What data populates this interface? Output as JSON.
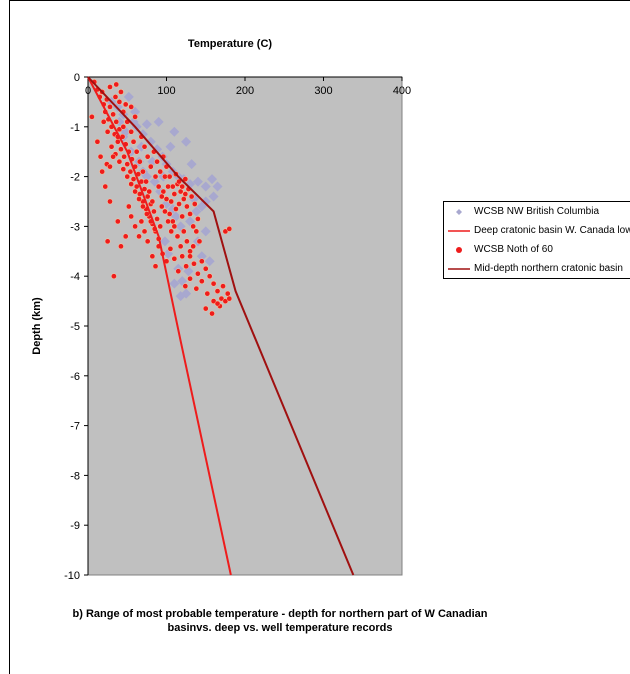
{
  "chart_data": {
    "type": "scatter",
    "title": "Temperature (C)",
    "xlabel": "Temperature (C)",
    "ylabel": "Depth (km)",
    "xlim": [
      0,
      400
    ],
    "ylim": [
      -10,
      0
    ],
    "xticks": [
      "0",
      "100",
      "200",
      "300",
      "400"
    ],
    "yticks": [
      "0",
      "-1",
      "-2",
      "-3",
      "-4",
      "-5",
      "-6",
      "-7",
      "-8",
      "-9",
      "-10"
    ],
    "x_axis_position": "top",
    "grid": false,
    "legend_position": "right",
    "plot_background": "#c0c0c0",
    "series": [
      {
        "name": "WCSB NW British Columbia",
        "kind": "scatter",
        "marker": "diamond",
        "color": "#a8a8cf",
        "points": [
          [
            30,
            -0.5
          ],
          [
            38,
            -0.6
          ],
          [
            45,
            -0.75
          ],
          [
            52,
            -0.4
          ],
          [
            58,
            -0.9
          ],
          [
            62,
            -1.0
          ],
          [
            70,
            -1.15
          ],
          [
            75,
            -0.95
          ],
          [
            80,
            -1.3
          ],
          [
            88,
            -1.45
          ],
          [
            95,
            -1.6
          ],
          [
            100,
            -1.75
          ],
          [
            108,
            -1.9
          ],
          [
            115,
            -2.0
          ],
          [
            122,
            -2.05
          ],
          [
            130,
            -2.15
          ],
          [
            140,
            -2.1
          ],
          [
            150,
            -2.2
          ],
          [
            158,
            -2.05
          ],
          [
            165,
            -2.2
          ],
          [
            135,
            -2.45
          ],
          [
            145,
            -2.6
          ],
          [
            130,
            -2.9
          ],
          [
            150,
            -3.1
          ],
          [
            140,
            -3.3
          ],
          [
            145,
            -3.6
          ],
          [
            155,
            -3.7
          ],
          [
            120,
            -4.1
          ],
          [
            125,
            -4.35
          ],
          [
            110,
            -4.15
          ],
          [
            118,
            -4.4
          ],
          [
            70,
            -1.9
          ],
          [
            85,
            -2.1
          ],
          [
            92,
            -2.3
          ],
          [
            100,
            -2.55
          ],
          [
            112,
            -2.8
          ],
          [
            118,
            -3.0
          ],
          [
            98,
            -3.3
          ],
          [
            102,
            -3.55
          ],
          [
            115,
            -3.85
          ],
          [
            45,
            -1.2
          ],
          [
            55,
            -1.5
          ],
          [
            65,
            -1.7
          ],
          [
            75,
            -2.0
          ],
          [
            60,
            -0.7
          ],
          [
            40,
            -0.9
          ],
          [
            48,
            -1.1
          ],
          [
            125,
            -1.3
          ],
          [
            110,
            -1.1
          ],
          [
            90,
            -0.9
          ],
          [
            105,
            -1.4
          ],
          [
            132,
            -1.75
          ],
          [
            138,
            -2.7
          ],
          [
            128,
            -3.9
          ],
          [
            108,
            -2.65
          ],
          [
            96,
            -2.0
          ],
          [
            82,
            -1.7
          ],
          [
            68,
            -1.4
          ],
          [
            150,
            -2.5
          ],
          [
            160,
            -2.4
          ]
        ]
      },
      {
        "name": "Deep cratonic basin W. Canada low",
        "kind": "line",
        "color": "#ee1c1c",
        "points": [
          [
            0,
            0
          ],
          [
            50,
            -1.5
          ],
          [
            90,
            -3.2
          ],
          [
            118,
            -5.3
          ],
          [
            182,
            -10
          ]
        ]
      },
      {
        "name": "WCSB Noth of 60",
        "kind": "scatter",
        "marker": "circle",
        "color": "#ee1c1c",
        "points": [
          [
            8,
            -0.1
          ],
          [
            12,
            -0.25
          ],
          [
            15,
            -0.4
          ],
          [
            18,
            -0.3
          ],
          [
            20,
            -0.55
          ],
          [
            22,
            -0.7
          ],
          [
            24,
            -0.45
          ],
          [
            26,
            -0.85
          ],
          [
            28,
            -0.6
          ],
          [
            30,
            -1.0
          ],
          [
            32,
            -0.75
          ],
          [
            34,
            -1.15
          ],
          [
            36,
            -0.9
          ],
          [
            38,
            -1.3
          ],
          [
            40,
            -1.05
          ],
          [
            42,
            -1.45
          ],
          [
            44,
            -1.2
          ],
          [
            46,
            -1.6
          ],
          [
            48,
            -1.35
          ],
          [
            50,
            -1.75
          ],
          [
            52,
            -1.5
          ],
          [
            54,
            -1.9
          ],
          [
            56,
            -1.65
          ],
          [
            58,
            -2.05
          ],
          [
            60,
            -1.8
          ],
          [
            62,
            -2.2
          ],
          [
            64,
            -1.95
          ],
          [
            66,
            -2.35
          ],
          [
            68,
            -2.1
          ],
          [
            70,
            -2.5
          ],
          [
            72,
            -2.25
          ],
          [
            74,
            -2.65
          ],
          [
            76,
            -2.4
          ],
          [
            78,
            -2.8
          ],
          [
            80,
            -2.55
          ],
          [
            82,
            -2.95
          ],
          [
            84,
            -2.7
          ],
          [
            86,
            -3.1
          ],
          [
            88,
            -2.85
          ],
          [
            90,
            -3.25
          ],
          [
            92,
            -3.0
          ],
          [
            94,
            -2.6
          ],
          [
            96,
            -2.3
          ],
          [
            98,
            -2.0
          ],
          [
            100,
            -2.45
          ],
          [
            102,
            -2.2
          ],
          [
            104,
            -2.75
          ],
          [
            106,
            -2.5
          ],
          [
            108,
            -2.9
          ],
          [
            110,
            -2.35
          ],
          [
            112,
            -2.65
          ],
          [
            114,
            -2.15
          ],
          [
            116,
            -2.55
          ],
          [
            118,
            -2.3
          ],
          [
            120,
            -2.8
          ],
          [
            122,
            -2.45
          ],
          [
            124,
            -2.05
          ],
          [
            126,
            -2.6
          ],
          [
            128,
            -2.25
          ],
          [
            130,
            -2.75
          ],
          [
            132,
            -2.4
          ],
          [
            134,
            -3.0
          ],
          [
            136,
            -2.55
          ],
          [
            138,
            -3.1
          ],
          [
            140,
            -2.85
          ],
          [
            142,
            -3.3
          ],
          [
            20,
            -0.9
          ],
          [
            25,
            -1.1
          ],
          [
            30,
            -1.4
          ],
          [
            35,
            -1.55
          ],
          [
            40,
            -1.7
          ],
          [
            45,
            -1.85
          ],
          [
            50,
            -2.0
          ],
          [
            55,
            -2.15
          ],
          [
            60,
            -2.3
          ],
          [
            65,
            -2.45
          ],
          [
            70,
            -2.6
          ],
          [
            75,
            -2.75
          ],
          [
            80,
            -2.9
          ],
          [
            85,
            -3.05
          ],
          [
            90,
            -3.4
          ],
          [
            95,
            -3.55
          ],
          [
            100,
            -3.7
          ],
          [
            105,
            -3.45
          ],
          [
            110,
            -3.65
          ],
          [
            115,
            -3.9
          ],
          [
            120,
            -3.6
          ],
          [
            125,
            -3.8
          ],
          [
            130,
            -3.5
          ],
          [
            135,
            -3.75
          ],
          [
            140,
            -3.95
          ],
          [
            145,
            -3.7
          ],
          [
            150,
            -3.85
          ],
          [
            155,
            -4.0
          ],
          [
            160,
            -4.15
          ],
          [
            165,
            -4.3
          ],
          [
            170,
            -4.45
          ],
          [
            175,
            -4.5
          ],
          [
            178,
            -4.35
          ],
          [
            180,
            -4.45
          ],
          [
            172,
            -4.2
          ],
          [
            168,
            -4.6
          ],
          [
            160,
            -4.5
          ],
          [
            152,
            -4.35
          ],
          [
            145,
            -4.1
          ],
          [
            138,
            -4.25
          ],
          [
            130,
            -4.05
          ],
          [
            124,
            -4.2
          ],
          [
            150,
            -4.65
          ],
          [
            158,
            -4.75
          ],
          [
            165,
            -4.55
          ],
          [
            175,
            -3.1
          ],
          [
            180,
            -3.05
          ],
          [
            33,
            -4.0
          ],
          [
            25,
            -3.3
          ],
          [
            28,
            -2.5
          ],
          [
            18,
            -1.9
          ],
          [
            22,
            -2.2
          ],
          [
            38,
            -2.9
          ],
          [
            42,
            -3.4
          ],
          [
            48,
            -3.2
          ],
          [
            55,
            -2.8
          ],
          [
            60,
            -3.0
          ],
          [
            65,
            -3.2
          ],
          [
            52,
            -2.6
          ],
          [
            12,
            -1.3
          ],
          [
            16,
            -1.6
          ],
          [
            24,
            -1.75
          ],
          [
            5,
            -0.8
          ],
          [
            40,
            -0.5
          ],
          [
            45,
            -0.7
          ],
          [
            50,
            -0.9
          ],
          [
            55,
            -1.1
          ],
          [
            58,
            -1.3
          ],
          [
            62,
            -1.5
          ],
          [
            66,
            -1.7
          ],
          [
            70,
            -1.9
          ],
          [
            74,
            -2.1
          ],
          [
            78,
            -2.3
          ],
          [
            82,
            -2.5
          ],
          [
            86,
            -2.0
          ],
          [
            90,
            -2.2
          ],
          [
            94,
            -2.4
          ],
          [
            98,
            -2.7
          ],
          [
            102,
            -2.9
          ],
          [
            106,
            -3.1
          ],
          [
            110,
            -3.0
          ],
          [
            114,
            -3.2
          ],
          [
            118,
            -3.4
          ],
          [
            122,
            -3.1
          ],
          [
            126,
            -3.3
          ],
          [
            130,
            -3.6
          ],
          [
            134,
            -3.4
          ],
          [
            35,
            -0.4
          ],
          [
            42,
            -0.3
          ],
          [
            48,
            -0.55
          ],
          [
            28,
            -0.2
          ],
          [
            36,
            -0.15
          ],
          [
            55,
            -0.6
          ],
          [
            60,
            -0.8
          ],
          [
            45,
            -1.0
          ],
          [
            38,
            -1.2
          ],
          [
            32,
            -1.6
          ],
          [
            28,
            -1.8
          ],
          [
            68,
            -1.2
          ],
          [
            72,
            -1.4
          ],
          [
            76,
            -1.6
          ],
          [
            80,
            -1.8
          ],
          [
            84,
            -1.5
          ],
          [
            88,
            -1.7
          ],
          [
            92,
            -1.9
          ],
          [
            96,
            -1.6
          ],
          [
            100,
            -1.8
          ],
          [
            104,
            -2.0
          ],
          [
            108,
            -2.2
          ],
          [
            112,
            -1.95
          ],
          [
            116,
            -2.1
          ],
          [
            120,
            -2.2
          ],
          [
            124,
            -2.35
          ],
          [
            68,
            -2.9
          ],
          [
            72,
            -3.1
          ],
          [
            76,
            -3.3
          ],
          [
            82,
            -3.6
          ],
          [
            86,
            -3.8
          ]
        ]
      },
      {
        "name": "Mid-depth northern cratonic basin",
        "kind": "line",
        "color": "#a01010",
        "points": [
          [
            0,
            0
          ],
          [
            60,
            -1.0
          ],
          [
            115,
            -2.0
          ],
          [
            160,
            -2.7
          ],
          [
            188,
            -4.3
          ],
          [
            338,
            -10
          ]
        ]
      }
    ],
    "caption": "b) Range of most probable temperature - depth for northern part of W Canadian basinvs. deep vs. well temperature records"
  }
}
